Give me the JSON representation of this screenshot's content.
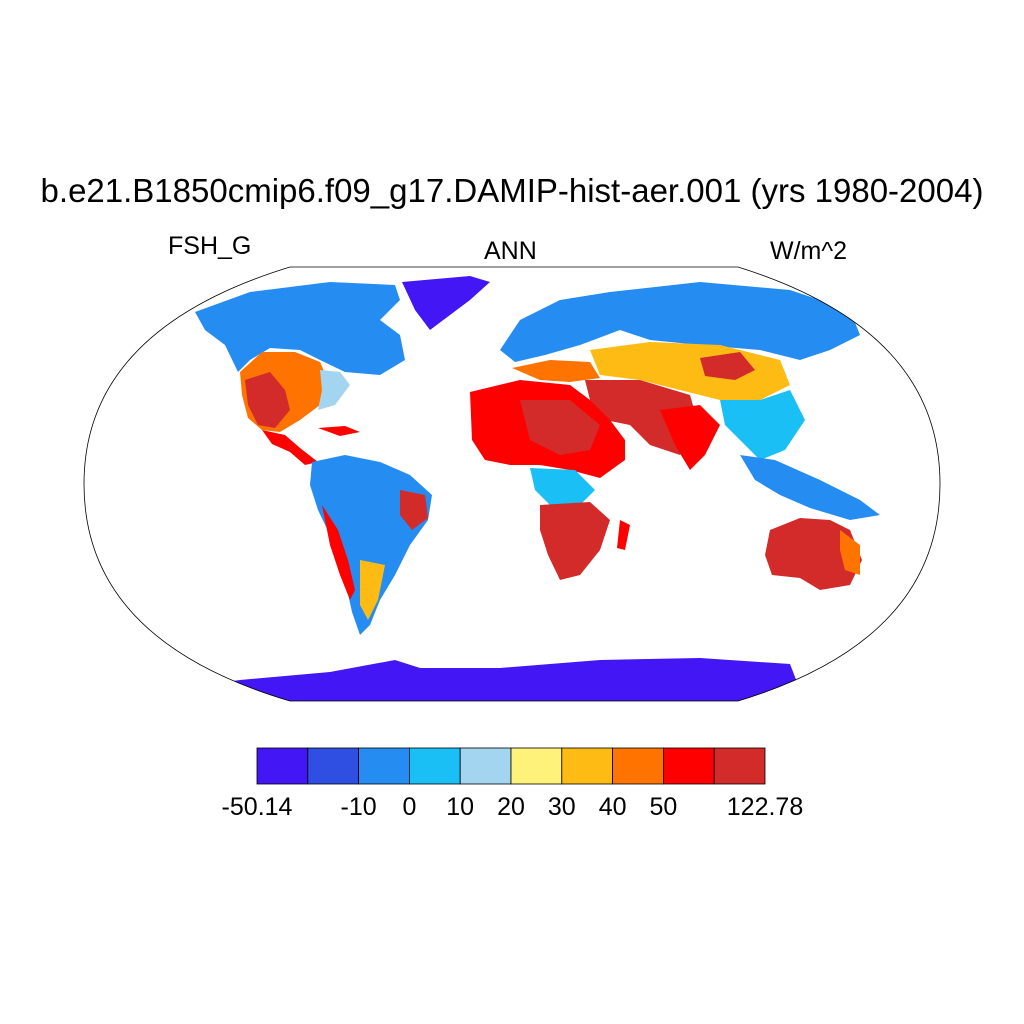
{
  "title": "b.e21.B1850cmip6.f09_g17.DAMIP-hist-aer.001 (yrs 1980-2004)",
  "left_label": "FSH_G",
  "center_label": "ANN",
  "right_label": "W/m^2",
  "colorbar": {
    "colors": [
      "#4216f5",
      "#2f4fe3",
      "#258cf2",
      "#19bff5",
      "#a3d4f0",
      "#fff27a",
      "#fdbb14",
      "#ff7300",
      "#ff0000",
      "#d32a2a"
    ],
    "labels": [
      "-50.14",
      "-10",
      "0",
      "10",
      "20",
      "30",
      "40",
      "50",
      "122.78"
    ]
  },
  "map_colors": {
    "land_blue": "#258cf2",
    "land_lightblue": "#19bff5",
    "land_paleblue": "#a3d4f0",
    "land_yellow": "#fff27a",
    "land_orange": "#fdbb14",
    "land_darkorange": "#ff7300",
    "land_red": "#ff0000",
    "land_darkred": "#d32a2a",
    "ice_purple": "#4216f5",
    "outline": "#000000"
  }
}
